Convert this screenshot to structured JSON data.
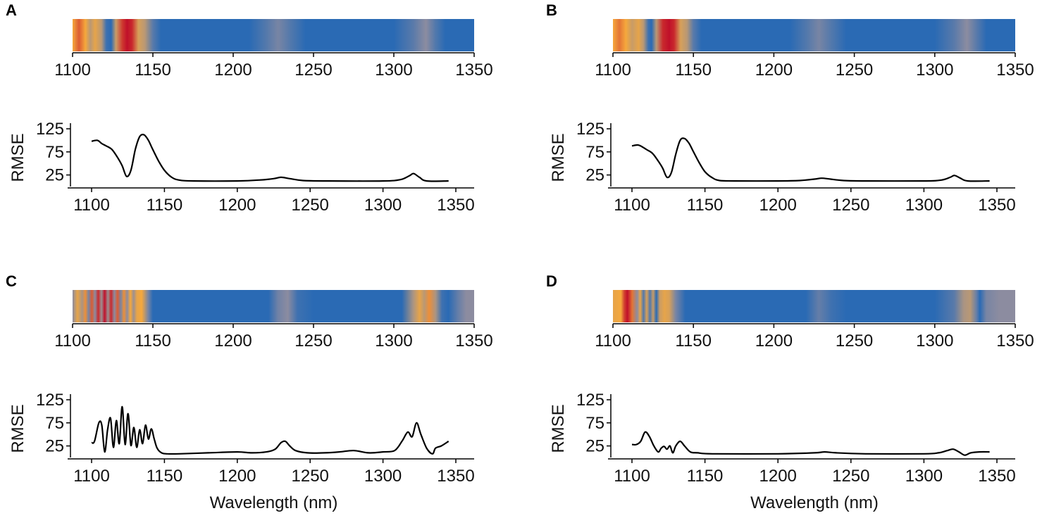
{
  "colors": {
    "low": "#2a6ab4",
    "mid": "#8c8ca0",
    "high": "#f5a83c",
    "peak": "#c0102a",
    "line": "#000000"
  },
  "chart_data": [
    {
      "panel": "A",
      "type": "line",
      "heatmap_xticks": [
        "1100",
        "1150",
        "1200",
        "1250",
        "1300",
        "1350"
      ],
      "xlabel": "",
      "ylabel": "RMSE",
      "yticks": [
        "125",
        "75",
        "25"
      ],
      "xlim": [
        1100,
        1350
      ],
      "ylim": [
        0,
        125
      ],
      "x": [
        1100,
        1104,
        1107,
        1110,
        1114,
        1118,
        1121,
        1124,
        1127,
        1130,
        1133,
        1136,
        1139,
        1142,
        1146,
        1150,
        1155,
        1160,
        1170,
        1200,
        1215,
        1225,
        1230,
        1236,
        1245,
        1260,
        1300,
        1312,
        1318,
        1321,
        1325,
        1330,
        1345
      ],
      "values": [
        98,
        100,
        93,
        88,
        80,
        62,
        45,
        22,
        35,
        80,
        108,
        112,
        100,
        80,
        55,
        35,
        20,
        14,
        12,
        12,
        14,
        17,
        20,
        17,
        13,
        12,
        12,
        15,
        23,
        28,
        20,
        12,
        12
      ],
      "heat_stops": [
        {
          "x": 1100,
          "v": 0.6
        },
        {
          "x": 1104,
          "v": 0.75
        },
        {
          "x": 1108,
          "v": 0.6
        },
        {
          "x": 1111,
          "v": 0.4
        },
        {
          "x": 1114,
          "v": 0.55
        },
        {
          "x": 1118,
          "v": 0.4
        },
        {
          "x": 1121,
          "v": 0.05
        },
        {
          "x": 1124,
          "v": 0.0
        },
        {
          "x": 1127,
          "v": 0.45
        },
        {
          "x": 1131,
          "v": 0.82
        },
        {
          "x": 1134,
          "v": 0.9
        },
        {
          "x": 1137,
          "v": 0.85
        },
        {
          "x": 1141,
          "v": 0.5
        },
        {
          "x": 1145,
          "v": 0.4
        },
        {
          "x": 1150,
          "v": 0.12
        },
        {
          "x": 1155,
          "v": 0.0
        },
        {
          "x": 1210,
          "v": 0.0
        },
        {
          "x": 1220,
          "v": 0.1
        },
        {
          "x": 1228,
          "v": 0.2
        },
        {
          "x": 1236,
          "v": 0.1
        },
        {
          "x": 1245,
          "v": 0.0
        },
        {
          "x": 1300,
          "v": 0.0
        },
        {
          "x": 1312,
          "v": 0.12
        },
        {
          "x": 1320,
          "v": 0.25
        },
        {
          "x": 1326,
          "v": 0.1
        },
        {
          "x": 1332,
          "v": 0.0
        },
        {
          "x": 1350,
          "v": 0.0
        }
      ]
    },
    {
      "panel": "B",
      "type": "line",
      "heatmap_xticks": [
        "1100",
        "1150",
        "1200",
        "1250",
        "1300",
        "1350"
      ],
      "xlabel": "",
      "ylabel": "RMSE",
      "yticks": [
        "125",
        "75",
        "25"
      ],
      "xlim": [
        1100,
        1350
      ],
      "ylim": [
        0,
        125
      ],
      "x": [
        1100,
        1104,
        1107,
        1110,
        1114,
        1118,
        1121,
        1124,
        1127,
        1130,
        1133,
        1136,
        1139,
        1142,
        1146,
        1150,
        1155,
        1160,
        1170,
        1200,
        1215,
        1225,
        1230,
        1236,
        1245,
        1260,
        1300,
        1312,
        1318,
        1321,
        1325,
        1330,
        1345
      ],
      "values": [
        88,
        90,
        86,
        80,
        72,
        55,
        40,
        20,
        30,
        70,
        100,
        104,
        94,
        76,
        52,
        32,
        19,
        13,
        12,
        12,
        13,
        16,
        18,
        16,
        13,
        12,
        12,
        14,
        20,
        24,
        18,
        12,
        12
      ],
      "heat_stops": [
        {
          "x": 1100,
          "v": 0.6
        },
        {
          "x": 1104,
          "v": 0.7
        },
        {
          "x": 1108,
          "v": 0.6
        },
        {
          "x": 1112,
          "v": 0.45
        },
        {
          "x": 1116,
          "v": 0.55
        },
        {
          "x": 1119,
          "v": 0.4
        },
        {
          "x": 1122,
          "v": 0.05
        },
        {
          "x": 1124,
          "v": 0.0
        },
        {
          "x": 1127,
          "v": 0.4
        },
        {
          "x": 1131,
          "v": 0.85
        },
        {
          "x": 1135,
          "v": 0.9
        },
        {
          "x": 1138,
          "v": 0.85
        },
        {
          "x": 1142,
          "v": 0.5
        },
        {
          "x": 1146,
          "v": 0.4
        },
        {
          "x": 1150,
          "v": 0.12
        },
        {
          "x": 1155,
          "v": 0.0
        },
        {
          "x": 1210,
          "v": 0.0
        },
        {
          "x": 1220,
          "v": 0.1
        },
        {
          "x": 1228,
          "v": 0.2
        },
        {
          "x": 1236,
          "v": 0.1
        },
        {
          "x": 1245,
          "v": 0.0
        },
        {
          "x": 1300,
          "v": 0.0
        },
        {
          "x": 1312,
          "v": 0.12
        },
        {
          "x": 1320,
          "v": 0.25
        },
        {
          "x": 1326,
          "v": 0.12
        },
        {
          "x": 1332,
          "v": 0.0
        },
        {
          "x": 1350,
          "v": 0.0
        }
      ]
    },
    {
      "panel": "C",
      "type": "line",
      "heatmap_xticks": [
        "1100",
        "1150",
        "1200",
        "1250",
        "1300",
        "1350"
      ],
      "xlabel": "Wavelength (nm)",
      "ylabel": "RMSE",
      "yticks": [
        "125",
        "75",
        "25"
      ],
      "xlim": [
        1100,
        1350
      ],
      "ylim": [
        0,
        125
      ],
      "x": [
        1100,
        1102,
        1105,
        1107,
        1109,
        1111,
        1113,
        1115,
        1117,
        1119,
        1121,
        1123,
        1125,
        1127,
        1129,
        1131,
        1133,
        1135,
        1137,
        1139,
        1141,
        1143,
        1145,
        1148,
        1152,
        1160,
        1180,
        1200,
        1210,
        1220,
        1226,
        1230,
        1233,
        1236,
        1240,
        1248,
        1260,
        1270,
        1280,
        1290,
        1300,
        1308,
        1313,
        1317,
        1320,
        1323,
        1326,
        1330,
        1334,
        1336,
        1340,
        1345
      ],
      "values": [
        32,
        35,
        75,
        70,
        12,
        60,
        85,
        22,
        80,
        30,
        110,
        28,
        95,
        26,
        65,
        22,
        60,
        30,
        70,
        40,
        62,
        40,
        20,
        10,
        8,
        8,
        10,
        12,
        10,
        12,
        18,
        32,
        35,
        25,
        15,
        10,
        10,
        12,
        15,
        10,
        12,
        15,
        35,
        55,
        45,
        75,
        50,
        20,
        8,
        20,
        25,
        35
      ],
      "heat_stops": [
        {
          "x": 1100,
          "v": 0.25
        },
        {
          "x": 1103,
          "v": 0.55
        },
        {
          "x": 1106,
          "v": 0.35
        },
        {
          "x": 1108,
          "v": 0.65
        },
        {
          "x": 1110,
          "v": 0.2
        },
        {
          "x": 1112,
          "v": 0.75
        },
        {
          "x": 1114,
          "v": 0.25
        },
        {
          "x": 1116,
          "v": 0.85
        },
        {
          "x": 1118,
          "v": 0.3
        },
        {
          "x": 1120,
          "v": 0.95
        },
        {
          "x": 1122,
          "v": 0.3
        },
        {
          "x": 1124,
          "v": 0.85
        },
        {
          "x": 1126,
          "v": 0.25
        },
        {
          "x": 1128,
          "v": 0.75
        },
        {
          "x": 1130,
          "v": 0.2
        },
        {
          "x": 1132,
          "v": 0.65
        },
        {
          "x": 1134,
          "v": 0.25
        },
        {
          "x": 1136,
          "v": 0.6
        },
        {
          "x": 1138,
          "v": 0.3
        },
        {
          "x": 1140,
          "v": 0.55
        },
        {
          "x": 1143,
          "v": 0.6
        },
        {
          "x": 1147,
          "v": 0.2
        },
        {
          "x": 1150,
          "v": 0.0
        },
        {
          "x": 1222,
          "v": 0.0
        },
        {
          "x": 1228,
          "v": 0.18
        },
        {
          "x": 1234,
          "v": 0.25
        },
        {
          "x": 1240,
          "v": 0.05
        },
        {
          "x": 1250,
          "v": 0.0
        },
        {
          "x": 1305,
          "v": 0.0
        },
        {
          "x": 1312,
          "v": 0.35
        },
        {
          "x": 1316,
          "v": 0.55
        },
        {
          "x": 1319,
          "v": 0.4
        },
        {
          "x": 1322,
          "v": 0.65
        },
        {
          "x": 1326,
          "v": 0.35
        },
        {
          "x": 1330,
          "v": 0.05
        },
        {
          "x": 1334,
          "v": 0.0
        },
        {
          "x": 1340,
          "v": 0.15
        },
        {
          "x": 1345,
          "v": 0.25
        },
        {
          "x": 1350,
          "v": 0.25
        }
      ]
    },
    {
      "panel": "D",
      "type": "line",
      "heatmap_xticks": [
        "1100",
        "1150",
        "1200",
        "1250",
        "1300",
        "1350"
      ],
      "xlabel": "Wavelength (nm)",
      "ylabel": "RMSE",
      "yticks": [
        "125",
        "75",
        "25"
      ],
      "xlim": [
        1100,
        1350
      ],
      "ylim": [
        0,
        125
      ],
      "x": [
        1100,
        1103,
        1106,
        1109,
        1112,
        1115,
        1118,
        1120,
        1122,
        1124,
        1126,
        1128,
        1130,
        1133,
        1136,
        1140,
        1145,
        1155,
        1200,
        1225,
        1232,
        1240,
        1260,
        1300,
        1310,
        1316,
        1320,
        1324,
        1328,
        1332,
        1338,
        1345
      ],
      "values": [
        28,
        28,
        35,
        55,
        45,
        25,
        12,
        20,
        24,
        18,
        25,
        10,
        25,
        35,
        25,
        12,
        10,
        8,
        8,
        10,
        12,
        10,
        8,
        8,
        10,
        15,
        18,
        12,
        5,
        10,
        12,
        12
      ],
      "heat_stops": [
        {
          "x": 1100,
          "v": 0.55
        },
        {
          "x": 1105,
          "v": 0.6
        },
        {
          "x": 1107,
          "v": 0.8
        },
        {
          "x": 1109,
          "v": 0.95
        },
        {
          "x": 1112,
          "v": 0.7
        },
        {
          "x": 1115,
          "v": 0.25
        },
        {
          "x": 1117,
          "v": 0.55
        },
        {
          "x": 1119,
          "v": 0.1
        },
        {
          "x": 1121,
          "v": 0.5
        },
        {
          "x": 1123,
          "v": 0.1
        },
        {
          "x": 1125,
          "v": 0.45
        },
        {
          "x": 1127,
          "v": 0.0
        },
        {
          "x": 1129,
          "v": 0.45
        },
        {
          "x": 1132,
          "v": 0.55
        },
        {
          "x": 1135,
          "v": 0.5
        },
        {
          "x": 1139,
          "v": 0.2
        },
        {
          "x": 1145,
          "v": 0.0
        },
        {
          "x": 1220,
          "v": 0.0
        },
        {
          "x": 1228,
          "v": 0.15
        },
        {
          "x": 1236,
          "v": 0.05
        },
        {
          "x": 1245,
          "v": 0.0
        },
        {
          "x": 1300,
          "v": 0.0
        },
        {
          "x": 1312,
          "v": 0.12
        },
        {
          "x": 1318,
          "v": 0.35
        },
        {
          "x": 1322,
          "v": 0.4
        },
        {
          "x": 1326,
          "v": 0.15
        },
        {
          "x": 1328,
          "v": 0.0
        },
        {
          "x": 1332,
          "v": 0.2
        },
        {
          "x": 1340,
          "v": 0.25
        },
        {
          "x": 1350,
          "v": 0.25
        }
      ]
    }
  ]
}
